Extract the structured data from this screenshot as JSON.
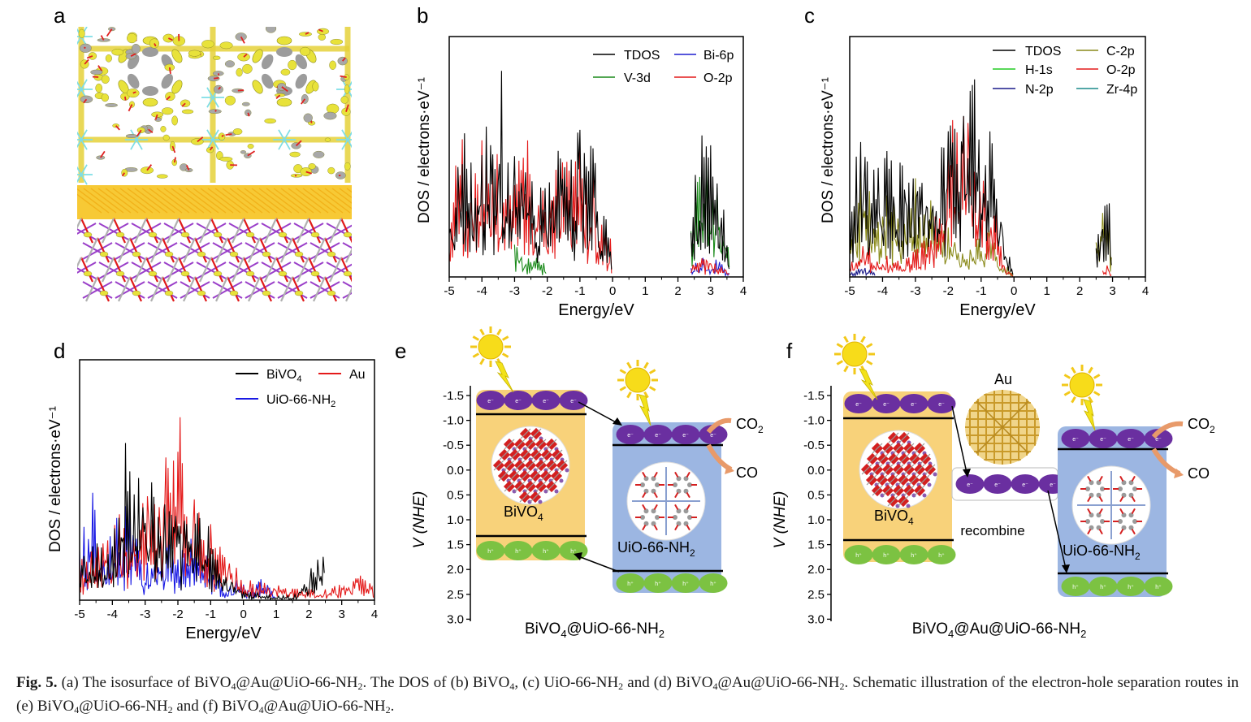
{
  "panels": {
    "a": {
      "label": "a"
    },
    "b": {
      "label": "b",
      "chart": {
        "type": "line",
        "xlabel": "Energy/eV",
        "ylabel": "DOS / electrons·eV⁻¹",
        "x_ticks": [
          "-5",
          "-4",
          "-3",
          "-2",
          "-1",
          "0",
          "1",
          "2",
          "3",
          "4"
        ],
        "xlim": [
          -5,
          4
        ],
        "legend": [
          {
            "name": "TDOS",
            "color": "#000000"
          },
          {
            "name": "Bi-6p",
            "color": "#1f1fcf"
          },
          {
            "name": "V-3d",
            "color": "#1a8a1a"
          },
          {
            "name": "O-2p",
            "color": "#e41a1a"
          }
        ]
      }
    },
    "c": {
      "label": "c",
      "chart": {
        "type": "line",
        "xlabel": "Energy/eV",
        "ylabel": "DOS / electrons·eV⁻¹",
        "x_ticks": [
          "-5",
          "-4",
          "-3",
          "-2",
          "-1",
          "0",
          "1",
          "2",
          "3",
          "4"
        ],
        "xlim": [
          -5,
          4
        ],
        "legend": [
          {
            "name": "TDOS",
            "color": "#000000"
          },
          {
            "name": "C-2p",
            "color": "#8a8a1a"
          },
          {
            "name": "H-1s",
            "color": "#22cc22"
          },
          {
            "name": "O-2p",
            "color": "#e41a1a"
          },
          {
            "name": "N-2p",
            "color": "#1a1a8a"
          },
          {
            "name": "Zr-4p",
            "color": "#1a8a8a"
          }
        ]
      }
    },
    "d": {
      "label": "d",
      "chart": {
        "type": "line",
        "xlabel": "Energy/eV",
        "ylabel": "DOS / electrons·eV⁻¹",
        "x_ticks": [
          "-5",
          "-4",
          "-3",
          "-2",
          "-1",
          "0",
          "1",
          "2",
          "3",
          "4"
        ],
        "xlim": [
          -5,
          4
        ],
        "legend": [
          {
            "name": "BiVO",
            "sub": "4",
            "color": "#000000"
          },
          {
            "name": "Au",
            "color": "#e41a1a"
          },
          {
            "name": "UiO-66-NH",
            "sub": "2",
            "color": "#1a1ae4"
          }
        ]
      }
    },
    "e": {
      "label": "e",
      "axis_title": "V (NHE)",
      "y_ticks": [
        "-1.5",
        "-1.0",
        "-0.5",
        "0.0",
        "0.5",
        "1.0",
        "1.5",
        "2.0",
        "2.5",
        "3.0"
      ],
      "left_block_label": "BiVO",
      "left_block_sub": "4",
      "right_block_label": "UiO-66-NH",
      "right_block_sub": "2",
      "electron_label": "e⁻",
      "hole_label": "h⁺",
      "co2_label": "CO",
      "co2_sub": "2",
      "co_label": "CO",
      "bottom_title": "BiVO",
      "bottom_title_sub1": "4",
      "bottom_title_mid": "@UiO-66-NH",
      "bottom_title_sub2": "2"
    },
    "f": {
      "label": "f",
      "axis_title": "V (NHE)",
      "y_ticks": [
        "-1.5",
        "-1.0",
        "-0.5",
        "0.0",
        "0.5",
        "1.0",
        "1.5",
        "2.0",
        "2.5",
        "3.0"
      ],
      "left_block_label": "BiVO",
      "left_block_sub": "4",
      "right_block_label": "UiO-66-NH",
      "right_block_sub": "2",
      "au_label": "Au",
      "recombine_label": "recombine",
      "co2_label": "CO",
      "co2_sub": "2",
      "co_label": "CO",
      "bottom_title": "BiVO",
      "bottom_title_sub1": "4",
      "bottom_title_mid": "@Au@UiO-66-NH",
      "bottom_title_sub2": "2"
    }
  },
  "chart_data": [
    {
      "panel": "b",
      "type": "line",
      "xlim": [
        -5,
        4
      ],
      "series": [
        {
          "name": "TDOS",
          "color": "#000000",
          "x": [
            -5.0,
            -4.8,
            -4.6,
            -4.4,
            -4.2,
            -4.0,
            -3.8,
            -3.6,
            -3.4,
            -3.2,
            -3.0,
            -2.8,
            -2.6,
            -2.4,
            -2.2,
            -2.0,
            -1.8,
            -1.6,
            -1.4,
            -1.2,
            -1.0,
            -0.8,
            -0.6,
            -0.4,
            -0.2,
            0.0,
            2.4,
            2.6,
            2.8,
            3.0,
            3.2,
            3.4,
            3.6
          ],
          "y": [
            0.35,
            0.55,
            0.9,
            0.45,
            0.7,
            0.65,
            0.85,
            0.55,
            0.95,
            0.6,
            0.75,
            0.55,
            0.7,
            0.45,
            0.5,
            0.4,
            0.55,
            0.6,
            0.65,
            0.5,
            0.8,
            0.55,
            0.6,
            0.3,
            0.25,
            0.2,
            0.3,
            0.55,
            0.65,
            0.6,
            0.45,
            0.35,
            0.1
          ]
        },
        {
          "name": "O-2p",
          "color": "#e41a1a",
          "x": [
            -5.0,
            -4.8,
            -4.6,
            -4.4,
            -4.2,
            -4.0,
            -3.8,
            -3.6,
            -3.4,
            -3.2,
            -3.0,
            -2.8,
            -2.6,
            -2.4,
            -2.2,
            -2.0,
            -1.8,
            -1.6,
            -1.4,
            -1.2,
            -1.0,
            -0.8,
            -0.6,
            -0.4,
            -0.2,
            0.0,
            2.4,
            2.6,
            2.8,
            3.0,
            3.2,
            3.4,
            3.6
          ],
          "y": [
            0.3,
            0.5,
            0.6,
            0.4,
            0.55,
            0.6,
            0.7,
            0.5,
            0.65,
            0.55,
            0.6,
            0.5,
            0.6,
            0.4,
            0.45,
            0.35,
            0.5,
            0.55,
            0.6,
            0.45,
            0.65,
            0.5,
            0.5,
            0.25,
            0.2,
            0.15,
            0.05,
            0.08,
            0.1,
            0.1,
            0.08,
            0.06,
            0.02
          ]
        },
        {
          "name": "V-3d",
          "color": "#1a8a1a",
          "x": [
            -5.0,
            -4.0,
            -3.0,
            -2.4,
            -2.0,
            -1.0,
            0.0,
            2.4,
            2.6,
            2.8,
            3.0,
            3.2,
            3.4,
            3.6
          ],
          "y": [
            0.05,
            0.08,
            0.15,
            0.1,
            0.05,
            0.02,
            0.0,
            0.2,
            0.45,
            0.5,
            0.55,
            0.4,
            0.3,
            0.05
          ]
        },
        {
          "name": "Bi-6p",
          "color": "#1f1fcf",
          "x": [
            -5.0,
            -4.0,
            -3.0,
            -2.0,
            -1.0,
            0.0,
            2.4,
            2.8,
            3.2,
            3.6
          ],
          "y": [
            0.01,
            0.02,
            0.02,
            0.02,
            0.02,
            0.0,
            0.05,
            0.1,
            0.08,
            0.02
          ]
        }
      ]
    },
    {
      "panel": "c",
      "type": "line",
      "xlim": [
        -5,
        4
      ],
      "series": [
        {
          "name": "TDOS",
          "color": "#000000",
          "x": [
            -5.0,
            -4.8,
            -4.6,
            -4.4,
            -4.2,
            -4.0,
            -3.8,
            -3.6,
            -3.4,
            -3.2,
            -3.0,
            -2.8,
            -2.6,
            -2.4,
            -2.2,
            -2.0,
            -1.8,
            -1.6,
            -1.4,
            -1.2,
            -1.0,
            -0.8,
            -0.6,
            -0.4,
            -0.2,
            0.0,
            2.5,
            2.7,
            2.9,
            3.0
          ],
          "y": [
            0.3,
            0.55,
            0.7,
            0.45,
            0.5,
            0.6,
            0.55,
            0.65,
            0.5,
            0.45,
            0.6,
            0.55,
            0.5,
            0.45,
            0.6,
            0.65,
            0.8,
            0.95,
            0.85,
            0.9,
            0.8,
            0.7,
            0.55,
            0.35,
            0.15,
            0.0,
            0.15,
            0.3,
            0.35,
            0.0
          ]
        },
        {
          "name": "O-2p",
          "color": "#e41a1a",
          "x": [
            -5.0,
            -4.6,
            -4.2,
            -3.8,
            -3.4,
            -3.0,
            -2.6,
            -2.2,
            -2.0,
            -1.8,
            -1.6,
            -1.4,
            -1.2,
            -1.0,
            -0.8,
            -0.6,
            -0.4,
            -0.2,
            0.0,
            2.7,
            2.9,
            3.0
          ],
          "y": [
            0.05,
            0.15,
            0.12,
            0.1,
            0.08,
            0.12,
            0.2,
            0.35,
            0.6,
            0.75,
            0.7,
            0.8,
            0.7,
            0.6,
            0.45,
            0.35,
            0.15,
            0.05,
            0.0,
            0.05,
            0.05,
            0.0
          ]
        },
        {
          "name": "C-2p",
          "color": "#8a8a1a",
          "x": [
            -5.0,
            -4.6,
            -4.2,
            -3.8,
            -3.4,
            -3.0,
            -2.6,
            -2.2,
            -1.8,
            -1.4,
            -1.0,
            -0.8,
            -0.6,
            -0.4,
            -0.2,
            0.0,
            2.5,
            2.7,
            2.9,
            3.0
          ],
          "y": [
            0.3,
            0.5,
            0.35,
            0.45,
            0.4,
            0.45,
            0.35,
            0.3,
            0.2,
            0.15,
            0.2,
            0.3,
            0.2,
            0.1,
            0.05,
            0.0,
            0.15,
            0.3,
            0.3,
            0.0
          ]
        },
        {
          "name": "N-2p",
          "color": "#1a1a8a",
          "x": [
            -5.0,
            -4.6,
            -4.2,
            -3.0,
            -2.0,
            -1.0,
            0.0
          ],
          "y": [
            0.02,
            0.05,
            0.02,
            0.03,
            0.02,
            0.01,
            0.0
          ]
        }
      ]
    },
    {
      "panel": "d",
      "type": "line",
      "xlim": [
        -5,
        4
      ],
      "series": [
        {
          "name": "BiVO4",
          "color": "#000000",
          "x": [
            -5.0,
            -4.6,
            -4.2,
            -3.8,
            -3.6,
            -3.4,
            -3.0,
            -2.6,
            -2.2,
            -1.8,
            -1.4,
            -1.0,
            -0.6,
            -0.2,
            0.0,
            0.5,
            1.0,
            1.5,
            2.0,
            2.3,
            2.5
          ],
          "y": [
            0.25,
            0.3,
            0.2,
            0.45,
            0.8,
            0.55,
            0.6,
            0.5,
            0.45,
            0.4,
            0.45,
            0.3,
            0.15,
            0.1,
            0.05,
            0.03,
            0.02,
            0.02,
            0.1,
            0.3,
            0.2
          ]
        },
        {
          "name": "Au",
          "color": "#e41a1a",
          "x": [
            -5.0,
            -4.5,
            -4.0,
            -3.5,
            -3.0,
            -2.5,
            -2.2,
            -2.0,
            -1.8,
            -1.5,
            -1.0,
            -0.5,
            0.0,
            0.5,
            1.0,
            1.5,
            2.0,
            2.5,
            3.0,
            3.5,
            4.0
          ],
          "y": [
            0.2,
            0.3,
            0.35,
            0.45,
            0.5,
            0.65,
            0.85,
            0.95,
            0.6,
            0.45,
            0.35,
            0.25,
            0.1,
            0.08,
            0.07,
            0.06,
            0.05,
            0.05,
            0.08,
            0.12,
            0.06
          ]
        },
        {
          "name": "UiO-66-NH2",
          "color": "#1a1ae4",
          "x": [
            -5.0,
            -4.6,
            -4.2,
            -3.8,
            -3.4,
            -3.0,
            -2.6,
            -2.2,
            -1.8,
            -1.4,
            -1.0,
            -0.6,
            -0.2,
            0.2,
            0.6,
            1.0
          ],
          "y": [
            0.3,
            0.5,
            0.2,
            0.45,
            0.4,
            0.15,
            0.35,
            0.3,
            0.25,
            0.3,
            0.2,
            0.05,
            0.1,
            0.05,
            0.1,
            0.02
          ]
        }
      ]
    }
  ],
  "caption": {
    "fig_label": "Fig. 5.",
    "t1": "(a) The isosurface of BiVO",
    "s1": "4",
    "t2": "@Au@UiO-66-NH",
    "s2": "2",
    "t3": ". The DOS of (b) BiVO",
    "s3": "4",
    "t4": ", (c) UiO-66-NH",
    "s4": "2",
    "t5": " and (d) BiVO",
    "s5": "4",
    "t6": "@Au@UiO-66-NH",
    "s6": "2",
    "t7": ". Schematic illustration of the electron-hole separation routes in (e) BiVO",
    "s7": "4",
    "t8": "@UiO-66-NH",
    "s8": "2",
    "t9": " and (f) BiVO",
    "s9": "4",
    "t10": "@Au@UiO-66-NH",
    "s10": "2",
    "t11": "."
  }
}
